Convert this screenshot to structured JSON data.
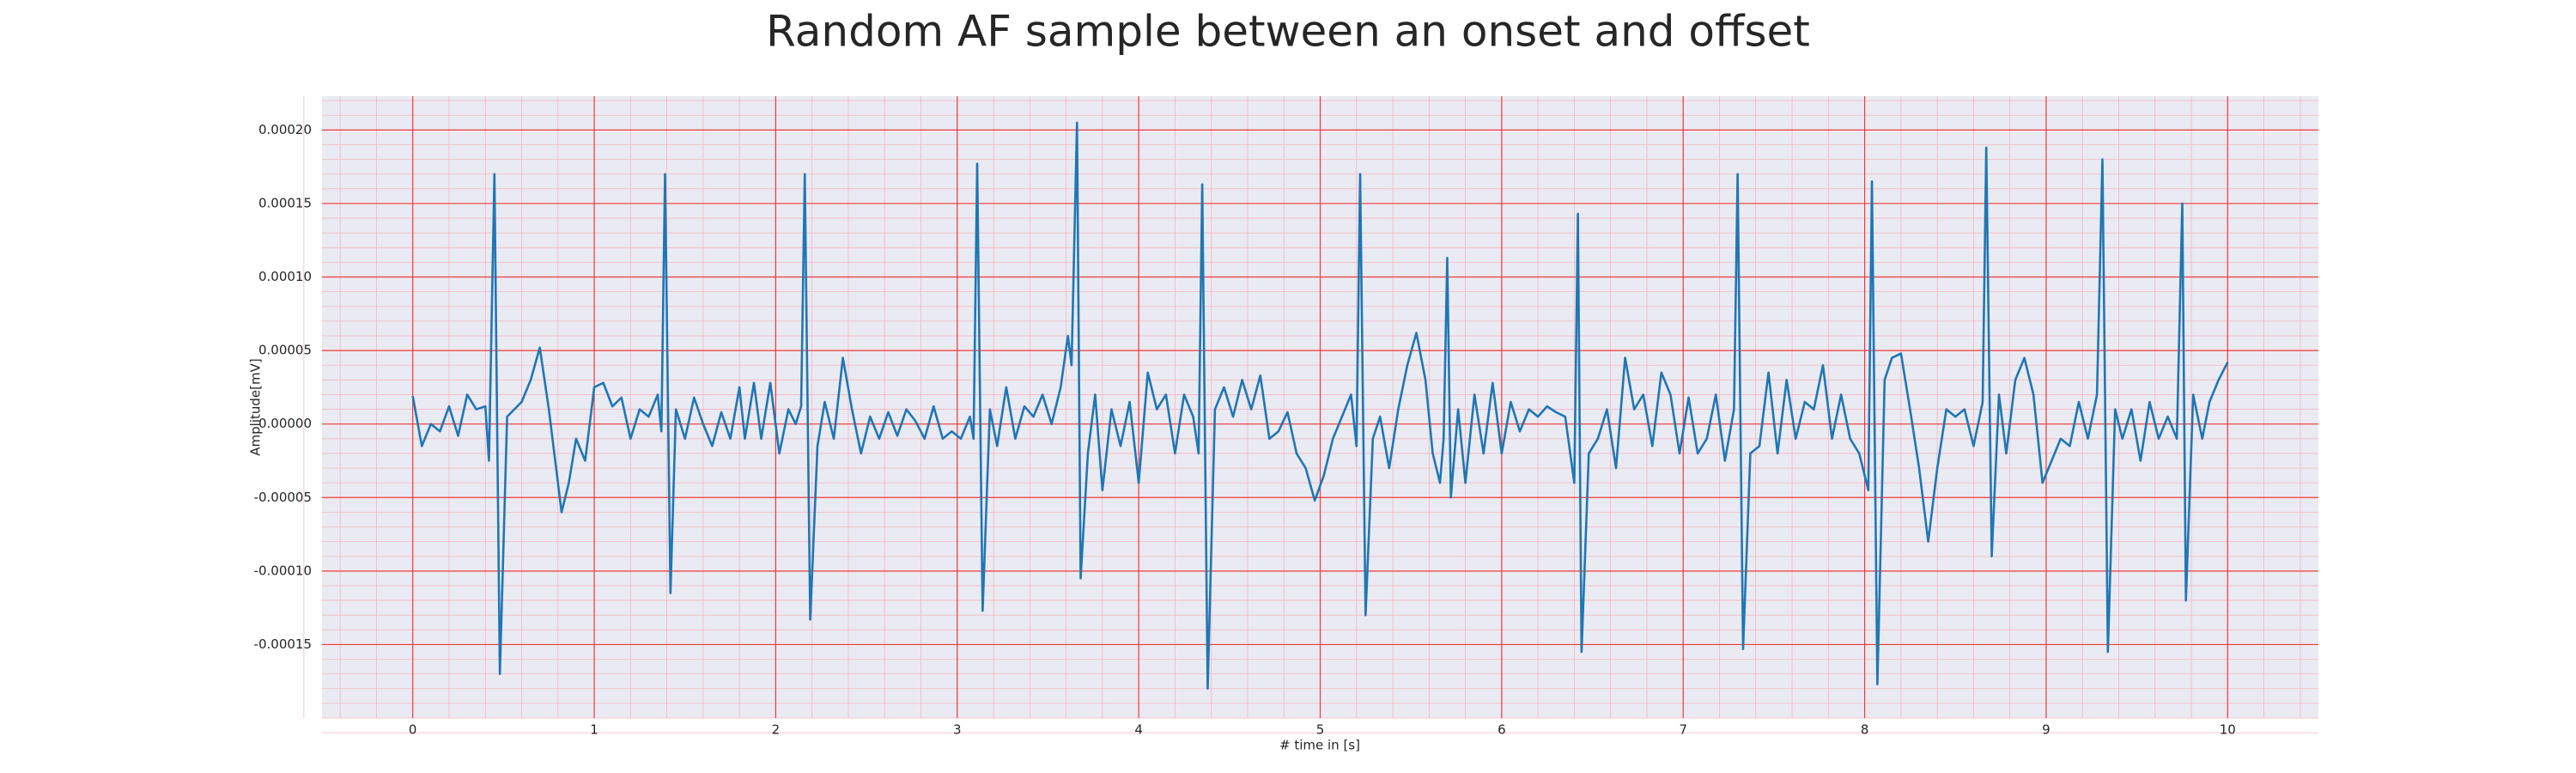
{
  "chart_data": {
    "type": "line",
    "title": "Random AF sample between an onset and offset",
    "xlabel": "# time in [s]",
    "ylabel": "Amplitude[mV]",
    "color": "#1f77b4",
    "grid": true,
    "minor_grid": true,
    "xlim": [
      -0.5,
      10.5
    ],
    "ylim": [
      -0.0002,
      0.000223
    ],
    "xticks": [
      0,
      1,
      2,
      3,
      4,
      5,
      6,
      7,
      8,
      9,
      10
    ],
    "yticks": [
      {
        "value": -0.00015,
        "label": "-0.00015"
      },
      {
        "value": -0.0001,
        "label": "-0.00010"
      },
      {
        "value": -5e-05,
        "label": "-0.00005"
      },
      {
        "value": 0,
        "label": "0.00000"
      },
      {
        "value": 5e-05,
        "label": "0.00005"
      },
      {
        "value": 0.0001,
        "label": "0.00010"
      },
      {
        "value": 0.00015,
        "label": "0.00015"
      },
      {
        "value": 0.0002,
        "label": "0.00020"
      }
    ],
    "x": [
      0,
      0.05,
      0.1,
      0.15,
      0.2,
      0.25,
      0.3,
      0.35,
      0.4,
      0.42,
      0.45,
      0.48,
      0.52,
      0.56,
      0.6,
      0.65,
      0.7,
      0.75,
      0.8,
      0.82,
      0.86,
      0.9,
      0.95,
      1.0,
      1.05,
      1.1,
      1.15,
      1.2,
      1.25,
      1.3,
      1.35,
      1.37,
      1.39,
      1.42,
      1.45,
      1.5,
      1.55,
      1.6,
      1.65,
      1.7,
      1.75,
      1.8,
      1.83,
      1.88,
      1.92,
      1.97,
      2.02,
      2.07,
      2.11,
      2.14,
      2.16,
      2.19,
      2.23,
      2.27,
      2.32,
      2.37,
      2.42,
      2.47,
      2.52,
      2.57,
      2.62,
      2.67,
      2.72,
      2.77,
      2.82,
      2.87,
      2.92,
      2.97,
      3.02,
      3.07,
      3.09,
      3.11,
      3.14,
      3.18,
      3.22,
      3.27,
      3.32,
      3.37,
      3.42,
      3.47,
      3.52,
      3.57,
      3.61,
      3.63,
      3.66,
      3.68,
      3.72,
      3.76,
      3.8,
      3.85,
      3.9,
      3.95,
      4.0,
      4.05,
      4.1,
      4.15,
      4.2,
      4.25,
      4.3,
      4.33,
      4.35,
      4.38,
      4.42,
      4.47,
      4.52,
      4.57,
      4.62,
      4.67,
      4.72,
      4.77,
      4.82,
      4.87,
      4.92,
      4.97,
      5.02,
      5.07,
      5.12,
      5.17,
      5.2,
      5.22,
      5.25,
      5.29,
      5.33,
      5.38,
      5.43,
      5.48,
      5.53,
      5.58,
      5.62,
      5.66,
      5.68,
      5.7,
      5.72,
      5.76,
      5.8,
      5.85,
      5.9,
      5.95,
      6.0,
      6.05,
      6.1,
      6.15,
      6.2,
      6.25,
      6.3,
      6.35,
      6.4,
      6.42,
      6.44,
      6.48,
      6.53,
      6.58,
      6.63,
      6.68,
      6.73,
      6.78,
      6.83,
      6.88,
      6.93,
      6.98,
      7.03,
      7.08,
      7.13,
      7.18,
      7.23,
      7.28,
      7.3,
      7.33,
      7.37,
      7.42,
      7.47,
      7.52,
      7.57,
      7.62,
      7.67,
      7.72,
      7.77,
      7.82,
      7.87,
      7.92,
      7.97,
      8.02,
      8.04,
      8.07,
      8.11,
      8.15,
      8.2,
      8.25,
      8.3,
      8.35,
      8.4,
      8.45,
      8.5,
      8.55,
      8.6,
      8.65,
      8.67,
      8.7,
      8.74,
      8.78,
      8.83,
      8.88,
      8.93,
      8.98,
      9.03,
      9.08,
      9.13,
      9.18,
      9.23,
      9.28,
      9.31,
      9.34,
      9.38,
      9.42,
      9.47,
      9.52,
      9.57,
      9.62,
      9.67,
      9.72,
      9.75,
      9.77,
      9.81,
      9.86,
      9.9,
      9.95,
      10
    ],
    "values": [
      1.9e-05,
      -1.5e-05,
      0,
      -5e-06,
      1.2e-05,
      -8e-06,
      2e-05,
      1e-05,
      1.2e-05,
      -2.5e-05,
      0.00017,
      -0.00017,
      5e-06,
      1e-05,
      1.5e-05,
      3e-05,
      5.2e-05,
      1e-05,
      -4e-05,
      -6e-05,
      -4e-05,
      -1e-05,
      -2.5e-05,
      2.5e-05,
      2.8e-05,
      1.2e-05,
      1.8e-05,
      -1e-05,
      1e-05,
      5e-06,
      2e-05,
      -5e-06,
      0.00017,
      -0.000115,
      1e-05,
      -1e-05,
      1.8e-05,
      0,
      -1.5e-05,
      8e-06,
      -1e-05,
      2.5e-05,
      -1e-05,
      2.8e-05,
      -1e-05,
      2.8e-05,
      -2e-05,
      1e-05,
      0,
      1.2e-05,
      0.00017,
      -0.000133,
      -1.5e-05,
      1.5e-05,
      -1e-05,
      4.5e-05,
      1e-05,
      -2e-05,
      5e-06,
      -1e-05,
      8e-06,
      -8e-06,
      1e-05,
      2e-06,
      -1e-05,
      1.2e-05,
      -1e-05,
      -5e-06,
      -1e-05,
      5e-06,
      -1e-05,
      0.000177,
      -0.000127,
      1e-05,
      -1.5e-05,
      2.5e-05,
      -1e-05,
      1.2e-05,
      5e-06,
      2e-05,
      0,
      2.5e-05,
      6e-05,
      4e-05,
      0.000205,
      -0.000105,
      -2e-05,
      2e-05,
      -4.5e-05,
      1e-05,
      -1.5e-05,
      1.5e-05,
      -4e-05,
      3.5e-05,
      1e-05,
      2e-05,
      -2e-05,
      2e-05,
      5e-06,
      -2e-05,
      0.000163,
      -0.00018,
      1e-05,
      2.5e-05,
      5e-06,
      3e-05,
      1e-05,
      3.3e-05,
      -1e-05,
      -5e-06,
      8e-06,
      -2e-05,
      -3e-05,
      -5.2e-05,
      -3.5e-05,
      -1e-05,
      5e-06,
      2e-05,
      -1.5e-05,
      0.00017,
      -0.00013,
      -1e-05,
      5e-06,
      -3e-05,
      1e-05,
      4e-05,
      6.2e-05,
      3e-05,
      -2e-05,
      -4e-05,
      -1e-05,
      0.000113,
      -5e-05,
      1e-05,
      -4e-05,
      2e-05,
      -2e-05,
      2.8e-05,
      -2e-05,
      1.5e-05,
      -5e-06,
      1e-05,
      5e-06,
      1.2e-05,
      8e-06,
      5e-06,
      -4e-05,
      0.000143,
      -0.000155,
      -2e-05,
      -1e-05,
      1e-05,
      -3e-05,
      4.5e-05,
      1e-05,
      2e-05,
      -1.5e-05,
      3.5e-05,
      2e-05,
      -2e-05,
      1.8e-05,
      -2e-05,
      -1e-05,
      2e-05,
      -2.5e-05,
      1e-05,
      0.00017,
      -0.000153,
      -2e-05,
      -1.5e-05,
      3.5e-05,
      -2e-05,
      3e-05,
      -1e-05,
      1.5e-05,
      1e-05,
      4e-05,
      -1e-05,
      2e-05,
      -1e-05,
      -2e-05,
      -4.5e-05,
      0.000165,
      -0.000177,
      3e-05,
      4.5e-05,
      4.8e-05,
      1e-05,
      -3e-05,
      -8e-05,
      -3e-05,
      1e-05,
      5e-06,
      1e-05,
      -1.5e-05,
      1.5e-05,
      0.000188,
      -9e-05,
      2e-05,
      -2e-05,
      3e-05,
      4.5e-05,
      2e-05,
      -4e-05,
      -2.5e-05,
      -1e-05,
      -1.5e-05,
      1.5e-05,
      -1e-05,
      2e-05,
      0.00018,
      -0.000155,
      1e-05,
      -1e-05,
      1e-05,
      -2.5e-05,
      1.5e-05,
      -1e-05,
      5e-06,
      -1e-05,
      0.00015,
      -0.00012,
      2e-05,
      -1e-05,
      1.5e-05,
      3e-05,
      4.2e-05
    ]
  }
}
